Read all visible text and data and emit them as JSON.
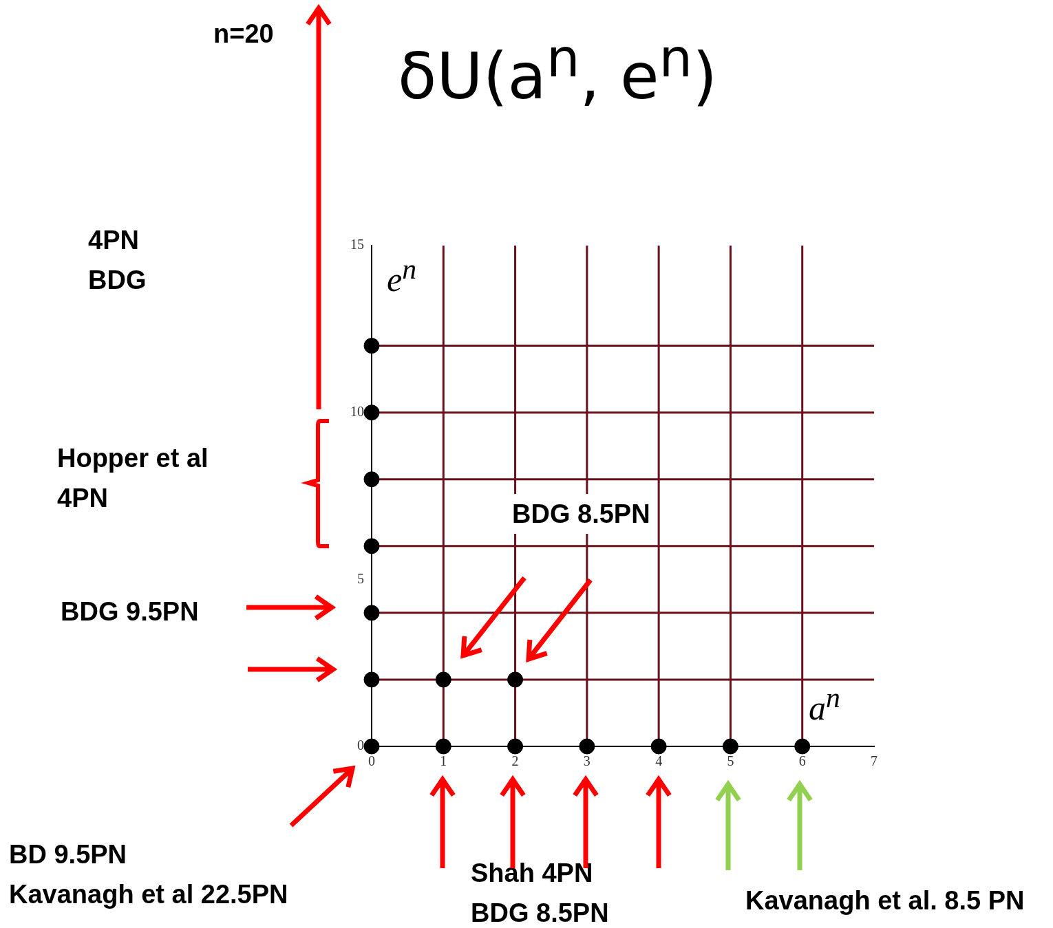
{
  "chart_data": {
    "type": "scatter",
    "title": "δU(a$^{n}$, e$^{n}$)",
    "xlabel": "a$^{n}$",
    "ylabel": "e$^{n}$",
    "xlim": [
      0,
      7
    ],
    "ylim": [
      0,
      15
    ],
    "xticks": [
      0,
      1,
      2,
      3,
      4,
      5,
      6,
      7
    ],
    "yticks": [
      0,
      5,
      10,
      15
    ],
    "grid": false,
    "legend": false,
    "marker": "circle",
    "series": [
      {
        "color": "#000000",
        "x": [
          0,
          1,
          2,
          3,
          4,
          5,
          6,
          0,
          1,
          2,
          0,
          0,
          0,
          0,
          0
        ],
        "values": [
          0,
          0,
          0,
          0,
          0,
          0,
          0,
          2,
          2,
          2,
          4,
          6,
          8,
          10,
          12
        ]
      }
    ],
    "ref_lines": [
      {
        "axis": "x",
        "value": 1,
        "color": "#6b0f1a"
      },
      {
        "axis": "x",
        "value": 2,
        "color": "#6b0f1a"
      },
      {
        "axis": "x",
        "value": 3,
        "color": "#6b0f1a"
      },
      {
        "axis": "x",
        "value": 4,
        "color": "#6b0f1a"
      },
      {
        "axis": "x",
        "value": 5,
        "color": "#6b0f1a"
      },
      {
        "axis": "x",
        "value": 6,
        "color": "#6b0f1a"
      },
      {
        "axis": "y",
        "value": 2,
        "color": "#6b0f1a"
      },
      {
        "axis": "y",
        "value": 4,
        "color": "#6b0f1a"
      },
      {
        "axis": "y",
        "value": 6,
        "color": "#6b0f1a"
      },
      {
        "axis": "y",
        "value": 8,
        "color": "#6b0f1a"
      },
      {
        "axis": "y",
        "value": 10,
        "color": "#6b0f1a"
      },
      {
        "axis": "y",
        "value": 12,
        "color": "#6b0f1a"
      }
    ],
    "annotations": [
      "n=20",
      "4PN\nBDG",
      "Hopper et al\n4PN",
      "BDG 8.5PN",
      "BDG 9.5PN",
      "BD 9.5PN\nKavanagh et al 22.5PN",
      "Shah 4PN\nBDG 8.5PN",
      "Kavanagh et al. 8.5 PN"
    ]
  }
}
